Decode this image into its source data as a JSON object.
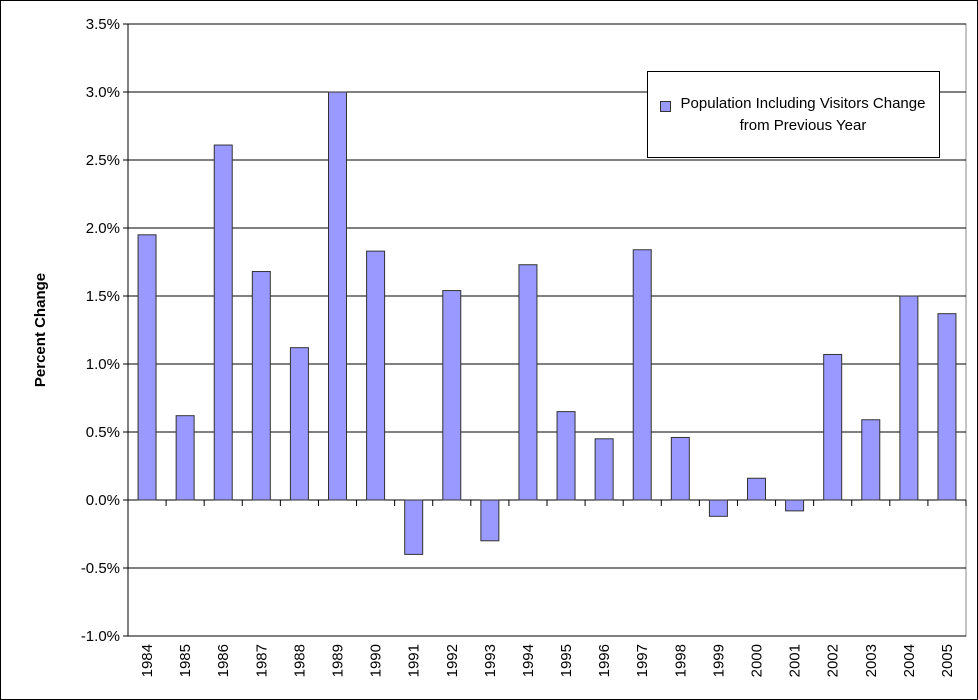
{
  "chart_data": {
    "type": "bar",
    "y_label": "Percent Change",
    "categories": [
      "1984",
      "1985",
      "1986",
      "1987",
      "1988",
      "1989",
      "1990",
      "1991",
      "1992",
      "1993",
      "1994",
      "1995",
      "1996",
      "1997",
      "1998",
      "1999",
      "2000",
      "2001",
      "2002",
      "2003",
      "2004",
      "2005"
    ],
    "series": [
      {
        "name": "Population Including Visitors Change from Previous Year",
        "color": "#9999ff",
        "values": [
          1.95,
          0.62,
          2.61,
          1.68,
          1.12,
          3.0,
          1.83,
          -0.4,
          1.54,
          -0.3,
          1.73,
          0.65,
          0.45,
          1.84,
          0.46,
          -0.12,
          0.16,
          -0.08,
          1.07,
          0.59,
          1.5,
          1.37
        ]
      }
    ],
    "ylim": [
      -1.0,
      3.5
    ],
    "yticks": [
      {
        "value": -1.0,
        "label": "-1.0%"
      },
      {
        "value": -0.5,
        "label": "-0.5%"
      },
      {
        "value": 0,
        "label": "0.0%"
      },
      {
        "value": 0.5,
        "label": "0.5%"
      },
      {
        "value": 1.0,
        "label": "1.0%"
      },
      {
        "value": 1.5,
        "label": "1.5%"
      },
      {
        "value": 2.0,
        "label": "2.0%"
      },
      {
        "value": 2.5,
        "label": "2.5%"
      },
      {
        "value": 3.0,
        "label": "3.0%"
      },
      {
        "value": 3.5,
        "label": "3.5%"
      }
    ],
    "grid": true,
    "legend_position": "upper right"
  }
}
